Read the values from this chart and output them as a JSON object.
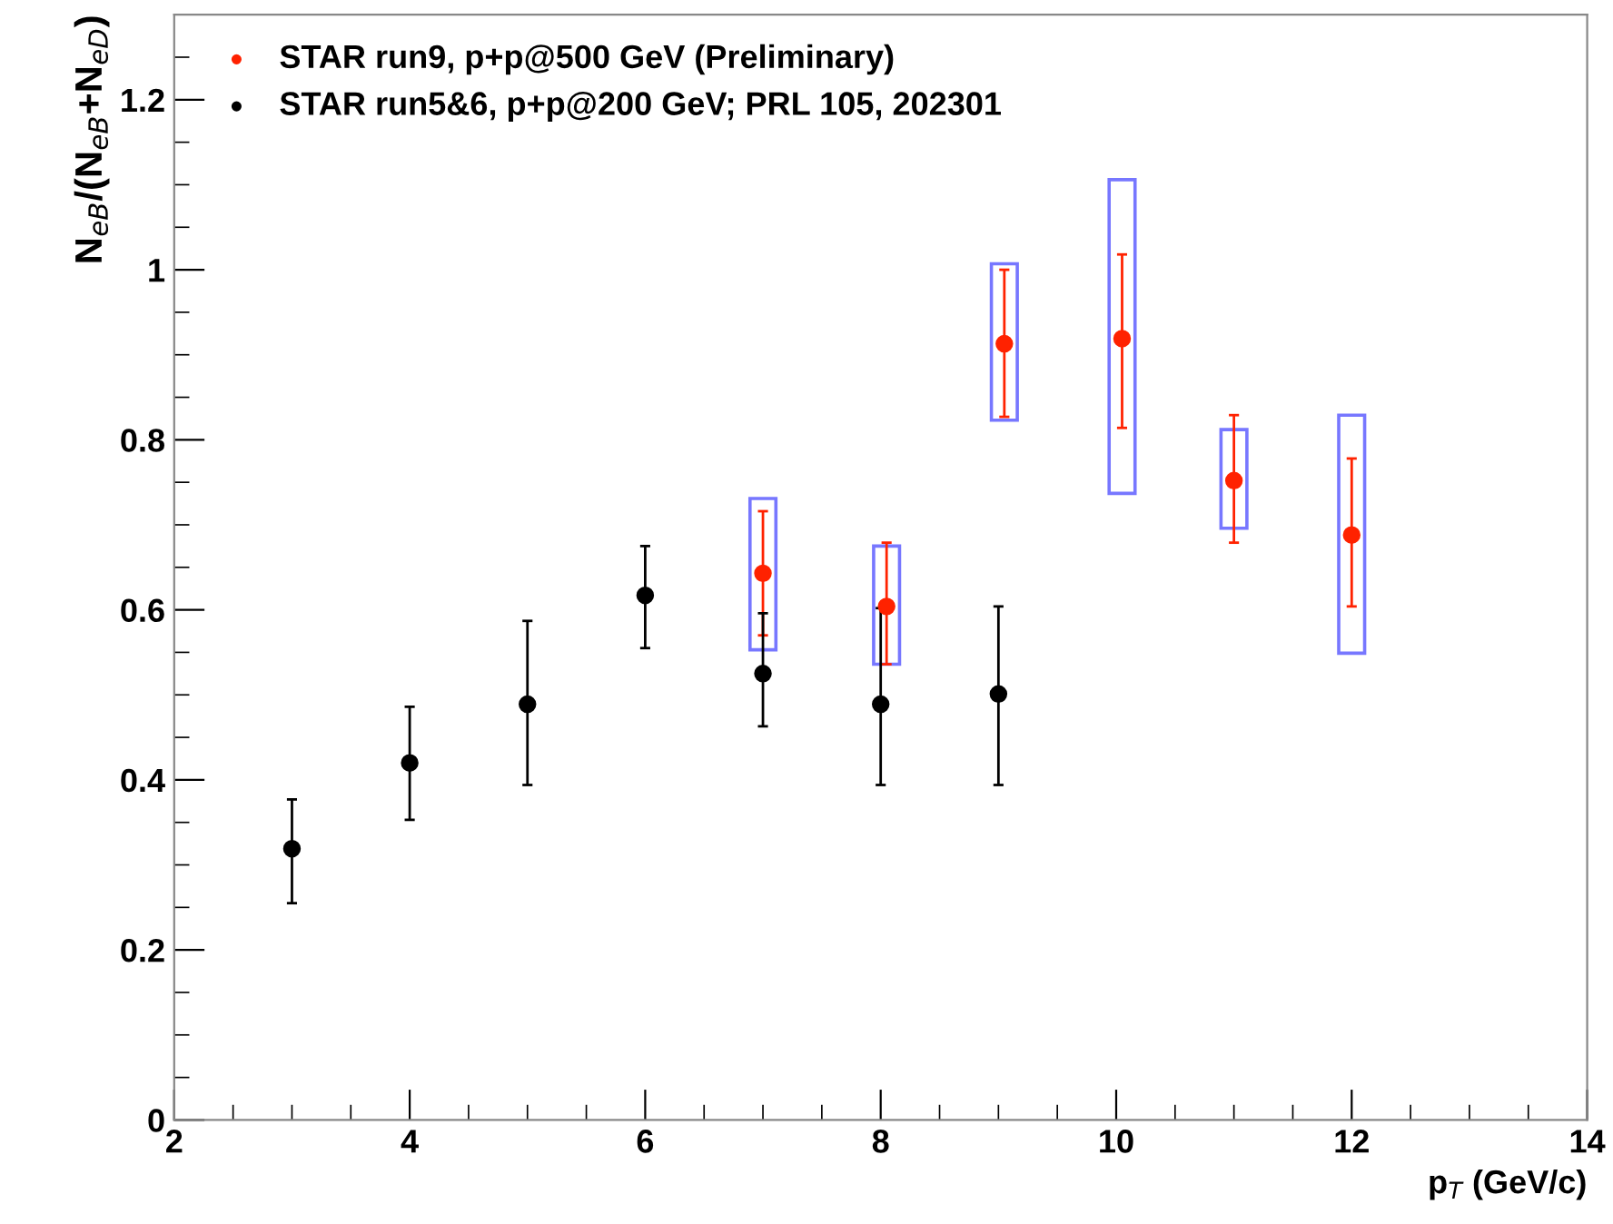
{
  "chart_data": {
    "type": "scatter",
    "xlabel": "p$_{T}$ (GeV/c)",
    "ylabel": "N$_{eB}$/(N$_{eB}$+N$_{eD}$)",
    "xlim": [
      2,
      14
    ],
    "xticks": [
      2,
      4,
      6,
      8,
      10,
      12,
      14
    ],
    "ylim": [
      0,
      1.3
    ],
    "yticks": [
      0,
      0.2,
      0.4,
      0.6,
      0.8,
      1,
      1.2
    ],
    "grid": false,
    "legend": "top left",
    "marker": "circle",
    "series": [
      {
        "type": "bar",
        "color": "#7777ff",
        "x": [
          7,
          8.05,
          9.05,
          10.05,
          11,
          12
        ],
        "base": [
          0.553,
          0.536,
          0.823,
          0.737,
          0.696,
          0.549
        ],
        "values": [
          0.178,
          0.139,
          0.184,
          0.369,
          0.116,
          0.28
        ]
      },
      {
        "name": "STAR run9, p+p@500 GeV (Preliminary)",
        "color": "#ff2200",
        "x": [
          7,
          8.05,
          9.05,
          10.05,
          11,
          12
        ],
        "values": [
          0.643,
          0.604,
          0.913,
          0.919,
          0.752,
          0.688
        ],
        "errors": [
          [
            0.57,
            0.716
          ],
          [
            0.536,
            0.679
          ],
          [
            0.827,
            1.0
          ],
          [
            0.814,
            1.018
          ],
          [
            0.679,
            0.829
          ],
          [
            0.604,
            0.778
          ]
        ]
      },
      {
        "name": "STAR run5&6, p+p@200 GeV; PRL 105, 202301",
        "color": "#000000",
        "x": [
          3,
          4,
          5,
          6,
          7,
          8,
          9
        ],
        "values": [
          0.319,
          0.42,
          0.489,
          0.617,
          0.525,
          0.489,
          0.501
        ],
        "errors": [
          [
            0.255,
            0.377
          ],
          [
            0.353,
            0.486
          ],
          [
            0.394,
            0.587
          ],
          [
            0.555,
            0.675
          ],
          [
            0.463,
            0.596
          ],
          [
            0.394,
            0.602
          ],
          [
            0.394,
            0.604
          ]
        ]
      }
    ]
  }
}
